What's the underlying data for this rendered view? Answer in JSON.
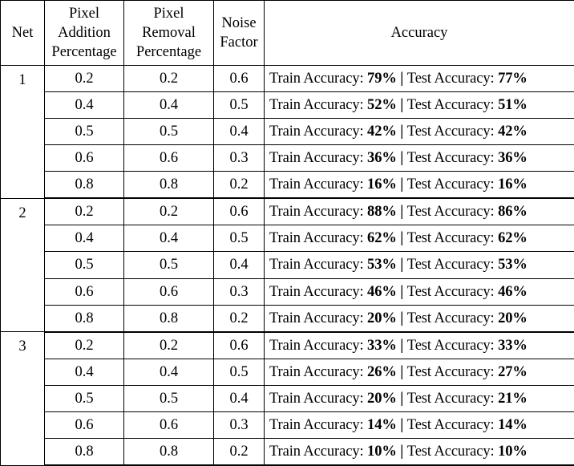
{
  "headers": {
    "net": "Net",
    "add_line1": "Pixel",
    "add_line2": "Addition",
    "add_line3": "Percentage",
    "rem_line1": "Pixel",
    "rem_line2": "Removal",
    "rem_line3": "Percentage",
    "noise_line1": "Noise",
    "noise_line2": "Factor",
    "accuracy": "Accuracy"
  },
  "labels": {
    "train": "Train Accuracy: ",
    "sep": " | ",
    "test": "Test Accuracy: "
  },
  "groups": [
    {
      "net": "1",
      "rows": [
        {
          "add": "0.2",
          "rem": "0.2",
          "noise": "0.6",
          "train": "79%",
          "test": "77%"
        },
        {
          "add": "0.4",
          "rem": "0.4",
          "noise": "0.5",
          "train": "52%",
          "test": "51%"
        },
        {
          "add": "0.5",
          "rem": "0.5",
          "noise": "0.4",
          "train": "42%",
          "test": "42%"
        },
        {
          "add": "0.6",
          "rem": "0.6",
          "noise": "0.3",
          "train": "36%",
          "test": "36%"
        },
        {
          "add": "0.8",
          "rem": "0.8",
          "noise": "0.2",
          "train": "16%",
          "test": "16%"
        }
      ]
    },
    {
      "net": "2",
      "rows": [
        {
          "add": "0.2",
          "rem": "0.2",
          "noise": "0.6",
          "train": "88%",
          "test": "86%"
        },
        {
          "add": "0.4",
          "rem": "0.4",
          "noise": "0.5",
          "train": "62%",
          "test": "62%"
        },
        {
          "add": "0.5",
          "rem": "0.5",
          "noise": "0.4",
          "train": "53%",
          "test": "53%"
        },
        {
          "add": "0.6",
          "rem": "0.6",
          "noise": "0.3",
          "train": "46%",
          "test": "46%"
        },
        {
          "add": "0.8",
          "rem": "0.8",
          "noise": "0.2",
          "train": "20%",
          "test": "20%"
        }
      ]
    },
    {
      "net": "3",
      "rows": [
        {
          "add": "0.2",
          "rem": "0.2",
          "noise": "0.6",
          "train": "33%",
          "test": "33%"
        },
        {
          "add": "0.4",
          "rem": "0.4",
          "noise": "0.5",
          "train": "26%",
          "test": "27%"
        },
        {
          "add": "0.5",
          "rem": "0.5",
          "noise": "0.4",
          "train": "20%",
          "test": "21%"
        },
        {
          "add": "0.6",
          "rem": "0.6",
          "noise": "0.3",
          "train": "14%",
          "test": "14%"
        },
        {
          "add": "0.8",
          "rem": "0.8",
          "noise": "0.2",
          "train": "10%",
          "test": "10%"
        }
      ]
    }
  ]
}
